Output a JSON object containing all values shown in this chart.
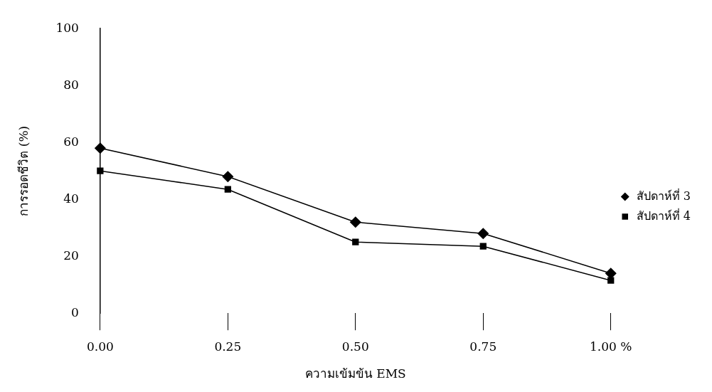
{
  "chart_data": {
    "type": "line",
    "xlabel": "ความเข้มข้น EMS",
    "ylabel": "การรอดชีวิต (%)",
    "categories": [
      "0.00",
      "0.25",
      "0.50",
      "0.75",
      "1.00 %"
    ],
    "series": [
      {
        "name": "สัปดาห์ที่ 3",
        "color": "#000000",
        "marker": "diamond",
        "values": [
          58,
          48,
          32,
          28,
          14
        ]
      },
      {
        "name": "สัปดาห์ที่ 4",
        "color": "#000000",
        "marker": "square",
        "values": [
          50,
          43.5,
          25,
          23.5,
          11.5
        ]
      }
    ],
    "ylim": [
      0,
      100
    ],
    "yticks": [
      0,
      20,
      40,
      60,
      80,
      100
    ],
    "grid": false,
    "legend": "right",
    "line_style": "solid"
  }
}
